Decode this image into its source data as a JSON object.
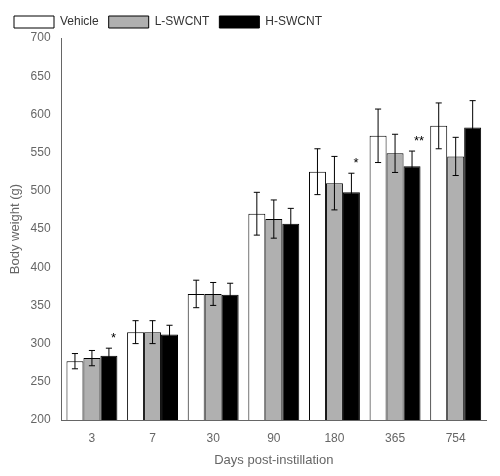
{
  "chart_data": {
    "type": "bar",
    "categories": [
      "3",
      "7",
      "30",
      "90",
      "180",
      "365",
      "754"
    ],
    "xlabel": "Days post-instillation",
    "ylabel": "Body weight (g)",
    "series": [
      {
        "name": "Vehicle",
        "color": "white",
        "values": [
          277,
          315,
          365,
          470,
          525,
          572,
          585
        ],
        "error": [
          10,
          15,
          18,
          28,
          30,
          35,
          30
        ]
      },
      {
        "name": "L-SWCNT",
        "color": "#b0b0b0",
        "values": [
          281,
          315,
          365,
          463,
          510,
          549,
          545
        ],
        "error": [
          10,
          15,
          15,
          25,
          35,
          25,
          25
        ]
      },
      {
        "name": "H-SWCNT",
        "color": "black",
        "values": [
          284,
          312,
          364,
          457,
          498,
          532,
          583
        ],
        "error": [
          10,
          12,
          15,
          20,
          25,
          20,
          35
        ]
      }
    ],
    "ylim": [
      200,
      700
    ],
    "yticks": [
      200,
      250,
      300,
      350,
      400,
      450,
      500,
      550,
      600,
      650,
      700
    ],
    "grid": false,
    "legend": "upper left",
    "annotations": [
      {
        "text": "*",
        "category": "3",
        "series": "H-SWCNT"
      },
      {
        "text": "*",
        "category": "180",
        "series": "H-SWCNT"
      },
      {
        "text": "**",
        "category": "365",
        "series": "H-SWCNT"
      }
    ]
  }
}
